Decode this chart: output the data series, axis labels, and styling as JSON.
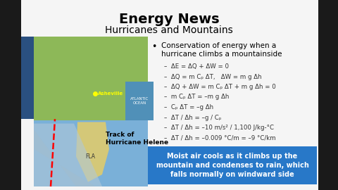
{
  "title": "Energy News",
  "subtitle": "Hurricanes and Mountains",
  "bg_color": "#f0f0f0",
  "slide_bg": "#f2f2f2",
  "border_color": "#1a1a1a",
  "title_color": "#000000",
  "subtitle_color": "#000000",
  "bullet_header_line1": "Conservation of energy when a",
  "bullet_header_line2": "hurricane climbs a mountainside",
  "equations": [
    "–  ΔE = ΔQ + ΔW = 0",
    "–  ΔQ = m Cₚ ΔT,   ΔW = m g Δh",
    "–  ΔQ + ΔW = m Cₚ ΔT + m g Δh = 0",
    "–  m Cₚ ΔT = –m g Δh",
    "–  Cₚ ΔT = –g Δh",
    "–  ΔT / Δh = –g / Cₚ",
    "–  ΔT / Δh = –10 m/s² / 1,100 J/kg-°C",
    "–  ΔT / Δh = –0.009 °C/m = –9 °C/km"
  ],
  "box_text": "Moist air cools as it climbs up the\nmountain and condenses to rain, which\nfalls normally on windward side",
  "box_bg_color": "#2878c8",
  "box_text_color": "#ffffff",
  "map_label": "Asheville",
  "track_label": "Track of\nHurricane Helene",
  "fla_label": "FLA",
  "atlantic_label": "ATLANTIC\nOCEAN",
  "ocean_color": "#7ab0d8",
  "land_color": "#8db858",
  "florida_color": "#d4c878",
  "track_band_color": "#9ab8cc",
  "left_border": "#1a1a1a",
  "right_border": "#1a1a1a"
}
